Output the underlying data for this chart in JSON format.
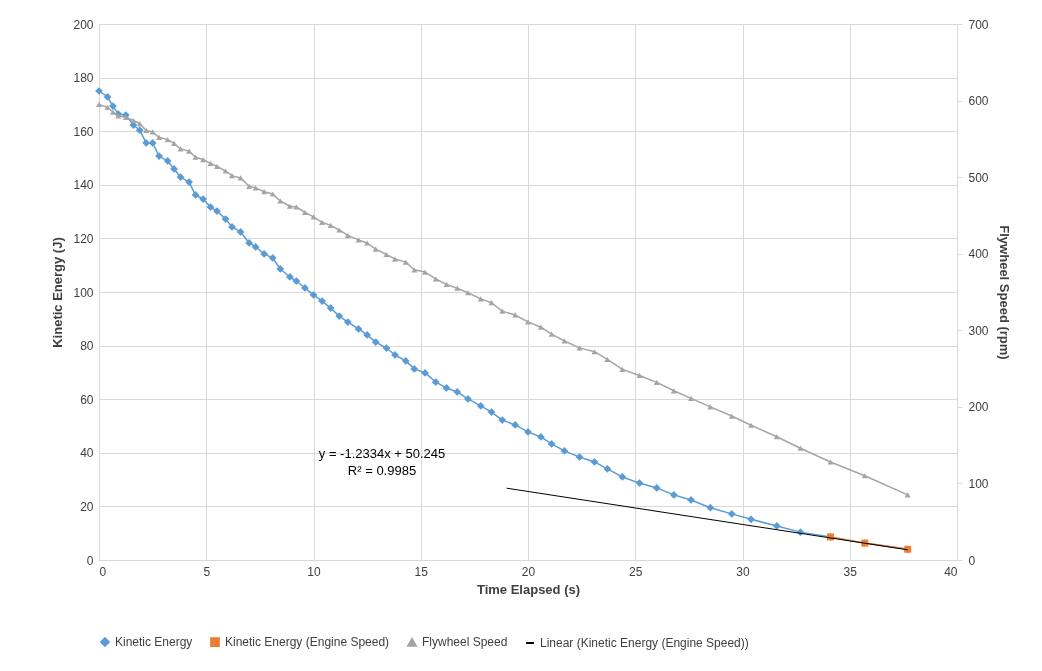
{
  "chart_data": {
    "type": "line",
    "xlabel": "Time Elapsed (s)",
    "ylabel": "Kinetic Energy (J)",
    "y2label": "Flywheel Speed (rpm)",
    "x": [
      0,
      0.4,
      0.65,
      0.9,
      1.25,
      1.6,
      1.9,
      2.2,
      2.5,
      2.8,
      3.2,
      3.5,
      3.8,
      4.2,
      4.5,
      4.85,
      5.2,
      5.5,
      5.9,
      6.2,
      6.6,
      7.0,
      7.3,
      7.7,
      8.1,
      8.45,
      8.9,
      9.2,
      9.6,
      10.0,
      10.4,
      10.8,
      11.2,
      11.6,
      12.1,
      12.5,
      12.9,
      13.4,
      13.8,
      14.3,
      14.7,
      15.2,
      15.7,
      16.2,
      16.7,
      17.2,
      17.8,
      18.3,
      18.8,
      19.4,
      20.0,
      20.6,
      21.1,
      21.7,
      22.4,
      23.1,
      23.7,
      24.4,
      25.2,
      26.0,
      26.8,
      27.6,
      28.5,
      29.5,
      30.4,
      31.6,
      32.7,
      34.1,
      35.7,
      37.7
    ],
    "series": [
      {
        "name": "Kinetic Energy",
        "color": "#5b9bd5",
        "marker": "diamond",
        "values": [
          175,
          172.8,
          169.4,
          166.4,
          166.0,
          162.3,
          160.4,
          155.6,
          155.6,
          150.7,
          148.9,
          145.9,
          142.9,
          141.0,
          136.2,
          134.7,
          131.7,
          130.2,
          127.2,
          124.3,
          122.4,
          118.3,
          116.8,
          114.2,
          112.7,
          108.6,
          105.6,
          104.1,
          101.5,
          98.9,
          96.6,
          94.0,
          91.0,
          88.8,
          86.2,
          84.0,
          81.3,
          79.1,
          76.5,
          74.3,
          71.3,
          69.8,
          66.4,
          64.2,
          62.7,
          60.1,
          57.5,
          55.2,
          52.2,
          50.4,
          47.8,
          45.9,
          43.3,
          40.7,
          38.4,
          36.6,
          34.0,
          31.0,
          28.7,
          26.9,
          24.3,
          22.4,
          19.5,
          17.2,
          15.2,
          12.7,
          10.4,
          8.6,
          6.3,
          4.0
        ]
      },
      {
        "name": "Kinetic Energy (Engine Speed)",
        "color": "#ed7d31",
        "marker": "square",
        "x": [
          34.1,
          35.7,
          37.7
        ],
        "values": [
          8.6,
          6.3,
          4.0
        ]
      },
      {
        "name": "Flywheel Speed",
        "color": "#a5a5a5",
        "marker": "triangle",
        "axis": "y2",
        "values": [
          595,
          591,
          585,
          580,
          578,
          574,
          570,
          561,
          559,
          552,
          549,
          544,
          537,
          534,
          526,
          523,
          518,
          514,
          508,
          502,
          499,
          488,
          486,
          481,
          478,
          469,
          462,
          461,
          454,
          448,
          441,
          437,
          431,
          424,
          418,
          414,
          406,
          399,
          393,
          389,
          379,
          376,
          367,
          360,
          355,
          349,
          341,
          336,
          325,
          320,
          311,
          304,
          295,
          286,
          277,
          272,
          262,
          249,
          241,
          232,
          221,
          211,
          200,
          188,
          176,
          161,
          146,
          128,
          110,
          85
        ]
      },
      {
        "name": "Linear (Kinetic Energy (Engine Speed))",
        "type": "line",
        "color": "#000000",
        "marker": "none",
        "x": [
          19,
          37.7
        ],
        "values": [
          26.8,
          3.8
        ]
      }
    ],
    "xlim": [
      0,
      40
    ],
    "xticks": [
      0,
      5,
      10,
      15,
      20,
      25,
      30,
      35,
      40
    ],
    "ylim": [
      0,
      200
    ],
    "yticks": [
      0,
      20,
      40,
      60,
      80,
      100,
      120,
      140,
      160,
      180,
      200
    ],
    "y2lim": [
      0,
      700
    ],
    "y2ticks": [
      0,
      100,
      200,
      300,
      400,
      500,
      600,
      700
    ],
    "annotations": [
      "y = -1.2334x + 50.245",
      "R² = 0.9985"
    ],
    "grid": true,
    "legend": "bottom"
  }
}
